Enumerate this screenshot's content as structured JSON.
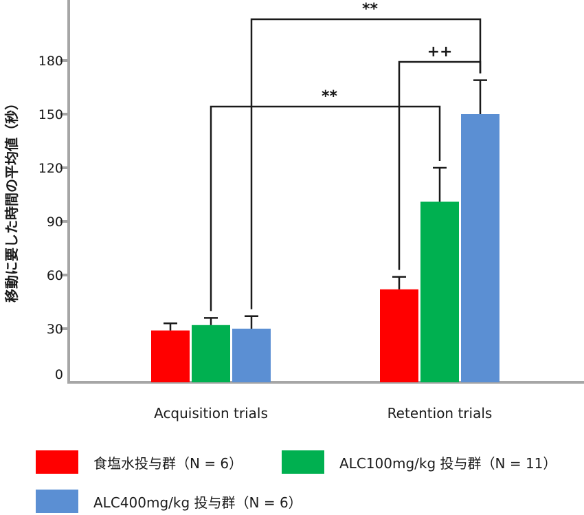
{
  "chart_data": {
    "type": "bar",
    "title": "",
    "xlabel": "",
    "ylabel": "移動に要した時間の平均値（秒）",
    "ylim": [
      0,
      210
    ],
    "yticks": [
      0,
      30,
      60,
      90,
      120,
      150,
      180
    ],
    "grid": false,
    "categories": [
      "Acquisition trials",
      "Retention trials"
    ],
    "series": [
      {
        "name": "食塩水投与群（N = 6）",
        "color": "#ff0000",
        "values": [
          29,
          52
        ],
        "errors": [
          4,
          7
        ]
      },
      {
        "name": "ALC100mg/kg 投与群（N = 11）",
        "color": "#00b050",
        "values": [
          32,
          101
        ],
        "errors": [
          4,
          19
        ]
      },
      {
        "name": "ALC400mg/kg 投与群（N = 6）",
        "color": "#5b8fd3",
        "values": [
          30,
          150
        ],
        "errors": [
          7,
          19
        ]
      }
    ],
    "annotations": [
      {
        "label": "**",
        "from": [
          "Acquisition trials",
          "ALC400mg/kg 投与群（N = 6）"
        ],
        "to": [
          "Retention trials",
          "ALC400mg/kg 投与群（N = 6）"
        ]
      },
      {
        "label": "++",
        "from": [
          "Retention trials",
          "食塩水投与群（N = 6）"
        ],
        "to": [
          "Retention trials",
          "ALC400mg/kg 投与群（N = 6）"
        ]
      },
      {
        "label": "**",
        "from": [
          "Acquisition trials",
          "ALC100mg/kg 投与群（N = 11）"
        ],
        "to": [
          "Retention trials",
          "ALC100mg/kg 投与群（N = 11）"
        ]
      }
    ],
    "legend_position": "bottom"
  }
}
